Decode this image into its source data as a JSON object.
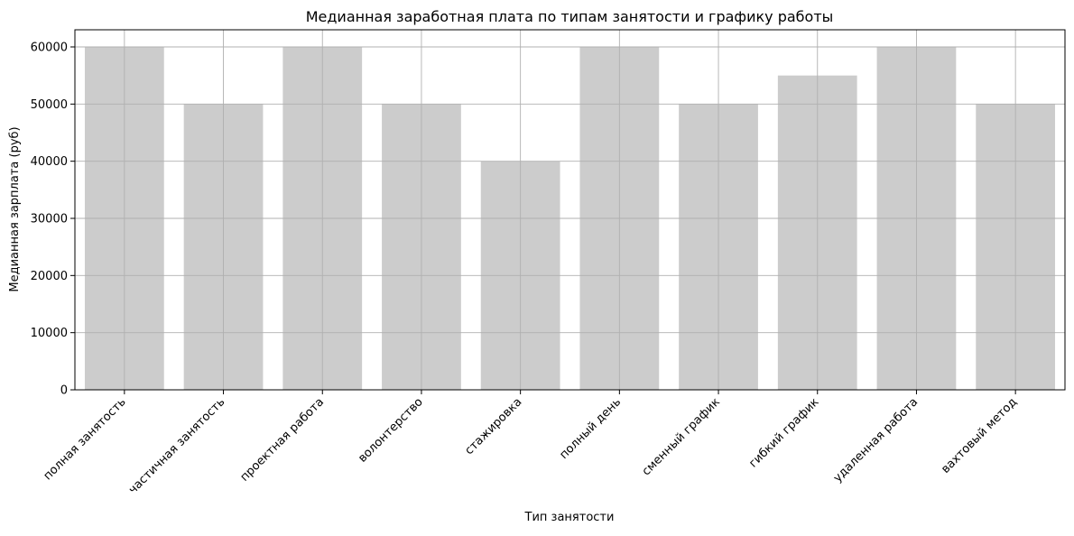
{
  "chart_data": {
    "type": "bar",
    "title": "Медианная заработная плата по типам занятости и графику работы",
    "xlabel": "Тип занятости",
    "ylabel": "Медианная зарплата (руб)",
    "categories": [
      "полная занятость",
      "частичная занятость",
      "проектная работа",
      "волонтерство",
      "стажировка",
      "полный день",
      "сменный график",
      "гибкий график",
      "удаленная работа",
      "вахтовый метод"
    ],
    "values": [
      60000,
      50000,
      60000,
      50000,
      40000,
      60000,
      50000,
      55000,
      60000,
      50000
    ],
    "ylim": [
      0,
      63000
    ],
    "yticks": [
      0,
      10000,
      20000,
      30000,
      40000,
      50000,
      60000
    ],
    "ytick_labels": [
      "0",
      "10000",
      "20000",
      "30000",
      "40000",
      "50000",
      "60000"
    ],
    "grid": true,
    "bar_color": "#cccccc",
    "grid_color": "#b0b0b0",
    "legend": "none"
  }
}
